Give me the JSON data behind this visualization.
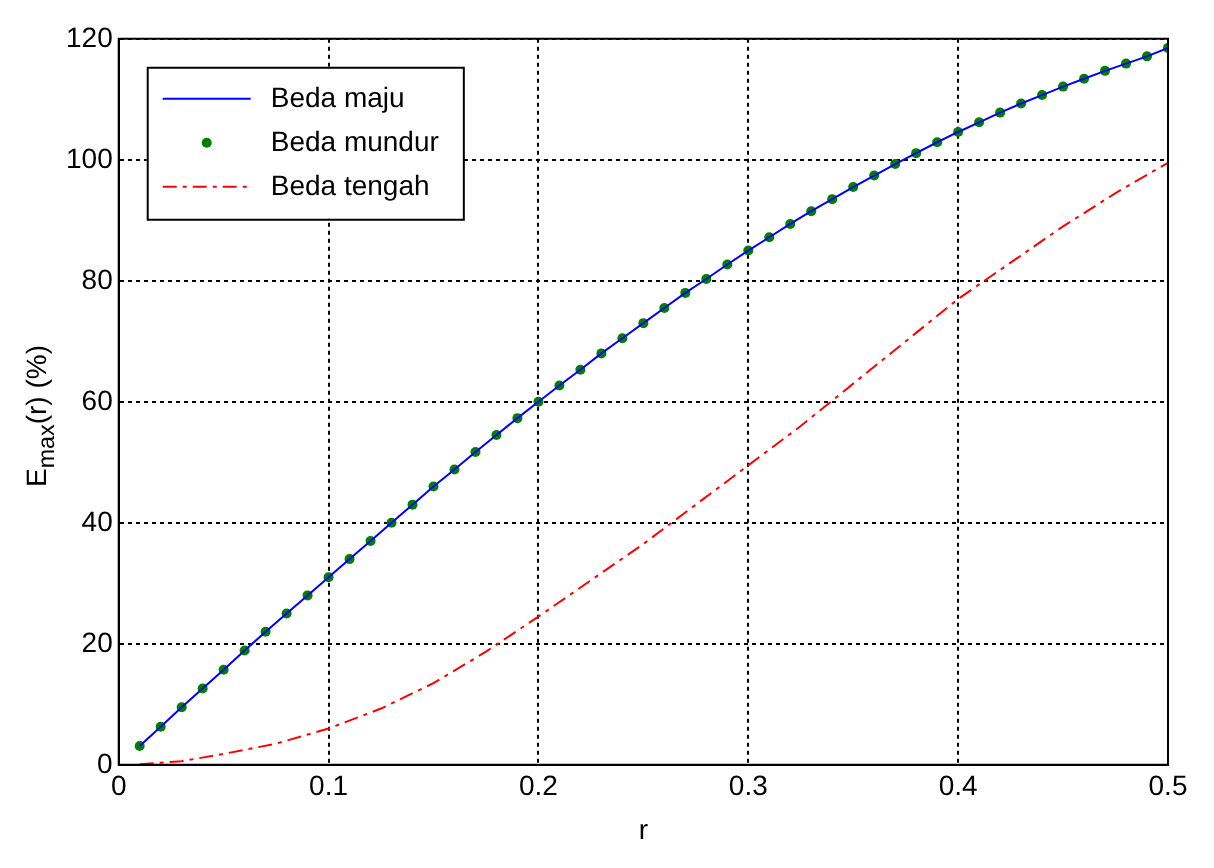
{
  "chart_data": {
    "type": "line",
    "xlabel": "r",
    "ylabel": "E$_{max}$(r) (%)",
    "xlim": [
      0,
      0.5
    ],
    "xticks": [
      0,
      0.1,
      0.2,
      0.3,
      0.4,
      0.5
    ],
    "ylim": [
      0,
      120
    ],
    "yticks": [
      0,
      20,
      40,
      60,
      80,
      100,
      120
    ],
    "grid": true,
    "legend": "top left",
    "series": [
      {
        "name": "Beda maju",
        "type": "line",
        "color": "#0000ff",
        "line_style": "solid",
        "marker": "none",
        "x": [
          0.01,
          0.02,
          0.03,
          0.04,
          0.05,
          0.06,
          0.07,
          0.08,
          0.09,
          0.1,
          0.11,
          0.12,
          0.13,
          0.14,
          0.15,
          0.16,
          0.17,
          0.18,
          0.19,
          0.2,
          0.21,
          0.22,
          0.23,
          0.24,
          0.25,
          0.26,
          0.27,
          0.28,
          0.29,
          0.3,
          0.31,
          0.32,
          0.33,
          0.34,
          0.35,
          0.36,
          0.37,
          0.38,
          0.39,
          0.4,
          0.41,
          0.42,
          0.43,
          0.44,
          0.45,
          0.46,
          0.47,
          0.48,
          0.49,
          0.5
        ],
        "values": [
          3.1,
          6.3,
          9.5,
          12.6,
          15.7,
          18.9,
          22,
          25,
          28,
          31,
          34,
          37,
          40,
          43,
          46,
          48.8,
          51.7,
          54.5,
          57.3,
          60,
          62.7,
          65.3,
          68,
          70.5,
          73,
          75.5,
          78,
          80.3,
          82.7,
          85,
          87.2,
          89.4,
          91.5,
          93.5,
          95.5,
          97.4,
          99.3,
          101.1,
          102.9,
          104.6,
          106.2,
          107.8,
          109.3,
          110.7,
          112.1,
          113.4,
          114.7,
          115.9,
          117.1,
          118.5
        ]
      },
      {
        "name": "Beda mundur",
        "type": "scatter",
        "color": "#008000",
        "marker": "circle",
        "x": [
          0.01,
          0.02,
          0.03,
          0.04,
          0.05,
          0.06,
          0.07,
          0.08,
          0.09,
          0.1,
          0.11,
          0.12,
          0.13,
          0.14,
          0.15,
          0.16,
          0.17,
          0.18,
          0.19,
          0.2,
          0.21,
          0.22,
          0.23,
          0.24,
          0.25,
          0.26,
          0.27,
          0.28,
          0.29,
          0.3,
          0.31,
          0.32,
          0.33,
          0.34,
          0.35,
          0.36,
          0.37,
          0.38,
          0.39,
          0.4,
          0.41,
          0.42,
          0.43,
          0.44,
          0.45,
          0.46,
          0.47,
          0.48,
          0.49,
          0.5
        ],
        "values": [
          3.1,
          6.3,
          9.5,
          12.6,
          15.7,
          18.9,
          22,
          25,
          28,
          31,
          34,
          37,
          40,
          43,
          46,
          48.8,
          51.7,
          54.5,
          57.3,
          60,
          62.7,
          65.3,
          68,
          70.5,
          73,
          75.5,
          78,
          80.3,
          82.7,
          85,
          87.2,
          89.4,
          91.5,
          93.5,
          95.5,
          97.4,
          99.3,
          101.1,
          102.9,
          104.6,
          106.2,
          107.8,
          109.3,
          110.7,
          112.1,
          113.4,
          114.7,
          115.9,
          117.1,
          118.5
        ]
      },
      {
        "name": "Beda tengah",
        "type": "line",
        "color": "#ff0000",
        "line_style": "dashed",
        "marker": "none",
        "x": [
          0.01,
          0.03,
          0.05,
          0.075,
          0.1,
          0.125,
          0.15,
          0.175,
          0.2,
          0.225,
          0.25,
          0.275,
          0.3,
          0.325,
          0.35,
          0.375,
          0.4,
          0.425,
          0.45,
          0.475,
          0.5
        ],
        "values": [
          0.1,
          0.6,
          1.8,
          3.5,
          6,
          9.3,
          13.5,
          18.7,
          24.5,
          30.5,
          36.5,
          43,
          49.5,
          56,
          63,
          70,
          77,
          83,
          89,
          94.5,
          99.5
        ]
      }
    ]
  }
}
